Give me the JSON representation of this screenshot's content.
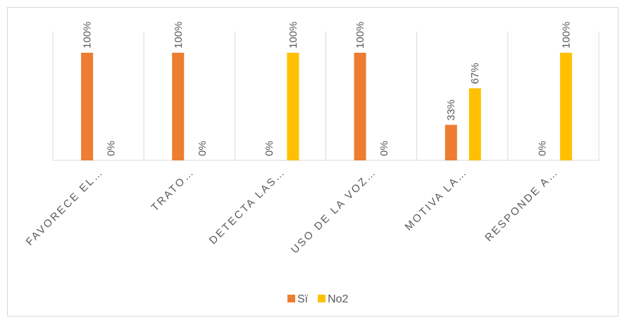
{
  "chart_data": {
    "type": "bar",
    "categories": [
      "FAVORECE EL…",
      "TRATO…",
      "DETECTA LAS…",
      "USO DE LA VOZ…",
      "MOTIVA LA…",
      "RESPONDE A…"
    ],
    "series": [
      {
        "name": "Sï",
        "color": "#ED7D31",
        "values": [
          100,
          100,
          0,
          100,
          33,
          0
        ],
        "value_labels": [
          "100%",
          "100%",
          "0%",
          "100%",
          "33%",
          "0%"
        ]
      },
      {
        "name": "No2",
        "color": "#FFC000",
        "values": [
          0,
          0,
          100,
          0,
          67,
          100
        ],
        "value_labels": [
          "0%",
          "0%",
          "100%",
          "0%",
          "67%",
          "100%"
        ]
      }
    ],
    "legend": "bottom"
  }
}
